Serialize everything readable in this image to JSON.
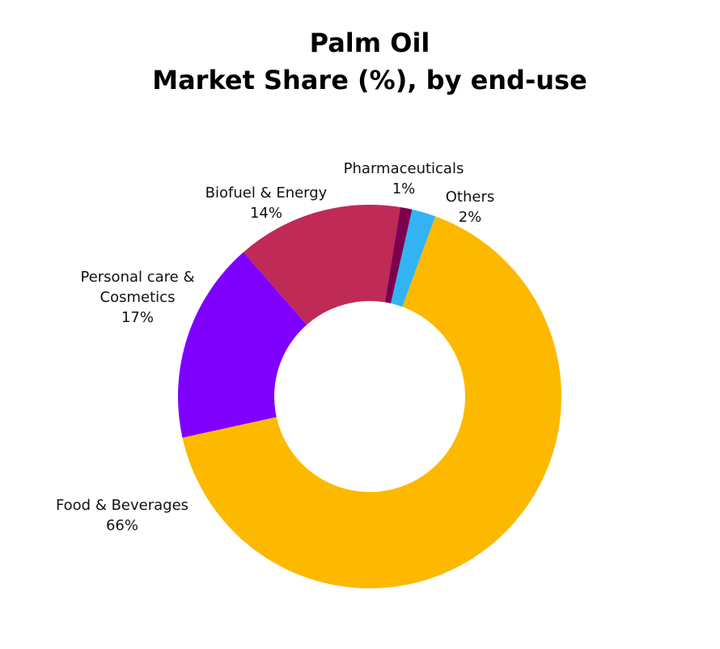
{
  "chart_data": {
    "type": "donut",
    "title": [
      "Palm Oil",
      "Market Share (%), by end-use"
    ],
    "categories": [
      "Food & Beverages",
      "Personal care & Cosmetics",
      "Biofuel & Energy",
      "Pharmaceuticals",
      "Others"
    ],
    "values": [
      66,
      17,
      14,
      1,
      2
    ],
    "value_labels": [
      "66%",
      "17%",
      "14%",
      "1%",
      "2%"
    ],
    "colors": [
      "#fdb900",
      "#8000ff",
      "#c02a56",
      "#7b0050",
      "#32b4f4"
    ]
  }
}
